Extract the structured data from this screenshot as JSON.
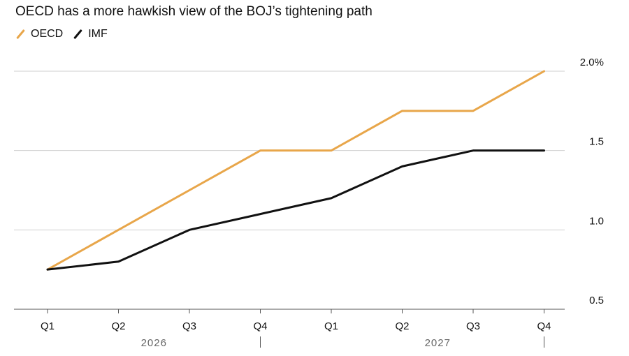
{
  "title": "OECD has a more hawkish view of the BOJ’s tightening path",
  "legend": [
    {
      "name": "OECD",
      "color": "#E8A64A"
    },
    {
      "name": "IMF",
      "color": "#111111"
    }
  ],
  "chart_data": {
    "type": "line",
    "categories": [
      "Q1",
      "Q2",
      "Q3",
      "Q4",
      "Q1",
      "Q2",
      "Q3",
      "Q4"
    ],
    "year_labels": [
      "2026",
      "2027"
    ],
    "series": [
      {
        "name": "OECD",
        "color": "#E8A64A",
        "values": [
          0.75,
          1.0,
          1.25,
          1.5,
          1.5,
          1.75,
          1.75,
          2.0
        ]
      },
      {
        "name": "IMF",
        "color": "#111111",
        "values": [
          0.75,
          0.8,
          1.0,
          1.1,
          1.2,
          1.4,
          1.5,
          1.5
        ]
      }
    ],
    "y_ticks": [
      {
        "value": 2.0,
        "label": "2.0%"
      },
      {
        "value": 1.5,
        "label": "1.5"
      },
      {
        "value": 1.0,
        "label": "1.0"
      },
      {
        "value": 0.5,
        "label": "0.5"
      }
    ],
    "ylim": [
      0.5,
      2.0
    ],
    "grid": true,
    "legend_position": "top-left",
    "xlabel": "",
    "ylabel": ""
  }
}
